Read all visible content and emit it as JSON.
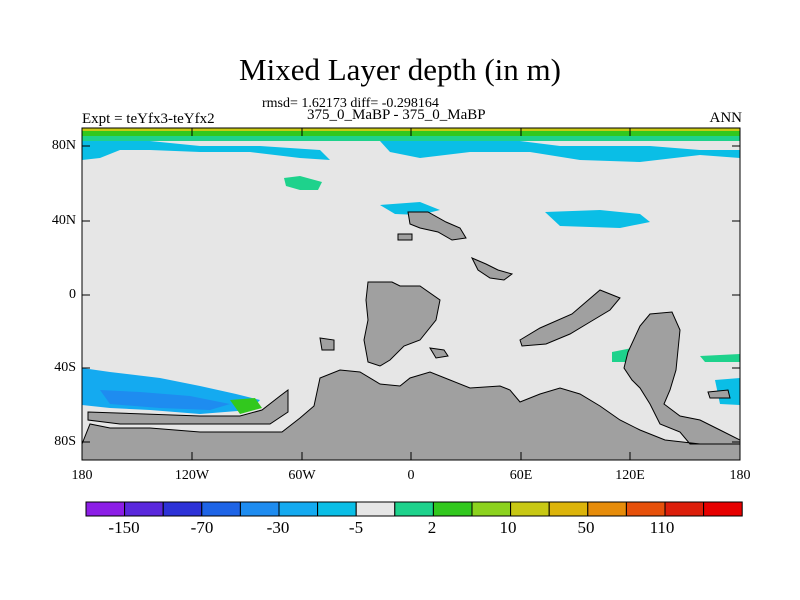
{
  "title": "Mixed Layer depth (in m)",
  "stats": "rmsd= 1.62173 diff= -0.298164",
  "period": "375_0_MaBP - 375_0_MaBP",
  "left_label": "Expt = teYfx3-teYfx2",
  "right_label": "ANN",
  "lat_ticks": [
    "80N",
    "40N",
    "0",
    "40S",
    "80S"
  ],
  "lon_ticks": [
    "180",
    "120W",
    "60W",
    "0",
    "60E",
    "120E",
    "180"
  ],
  "colorbar": {
    "colors": [
      "#8c1ee6",
      "#5a28dc",
      "#2d32d7",
      "#1e64e6",
      "#1e8cf0",
      "#14aaf0",
      "#0abee6",
      "#e6e6e6",
      "#1ed28c",
      "#32c81e",
      "#8cd21e",
      "#c8c814",
      "#dcb40a",
      "#e68c0a",
      "#e6500a",
      "#dc1e0a",
      "#e60000"
    ],
    "labels": [
      "-150",
      "-70",
      "-30",
      "-5",
      "2",
      "10",
      "50",
      "110"
    ]
  },
  "map": {
    "land_color": "#a0a0a0",
    "ocean_color": "#e6e6e6"
  }
}
